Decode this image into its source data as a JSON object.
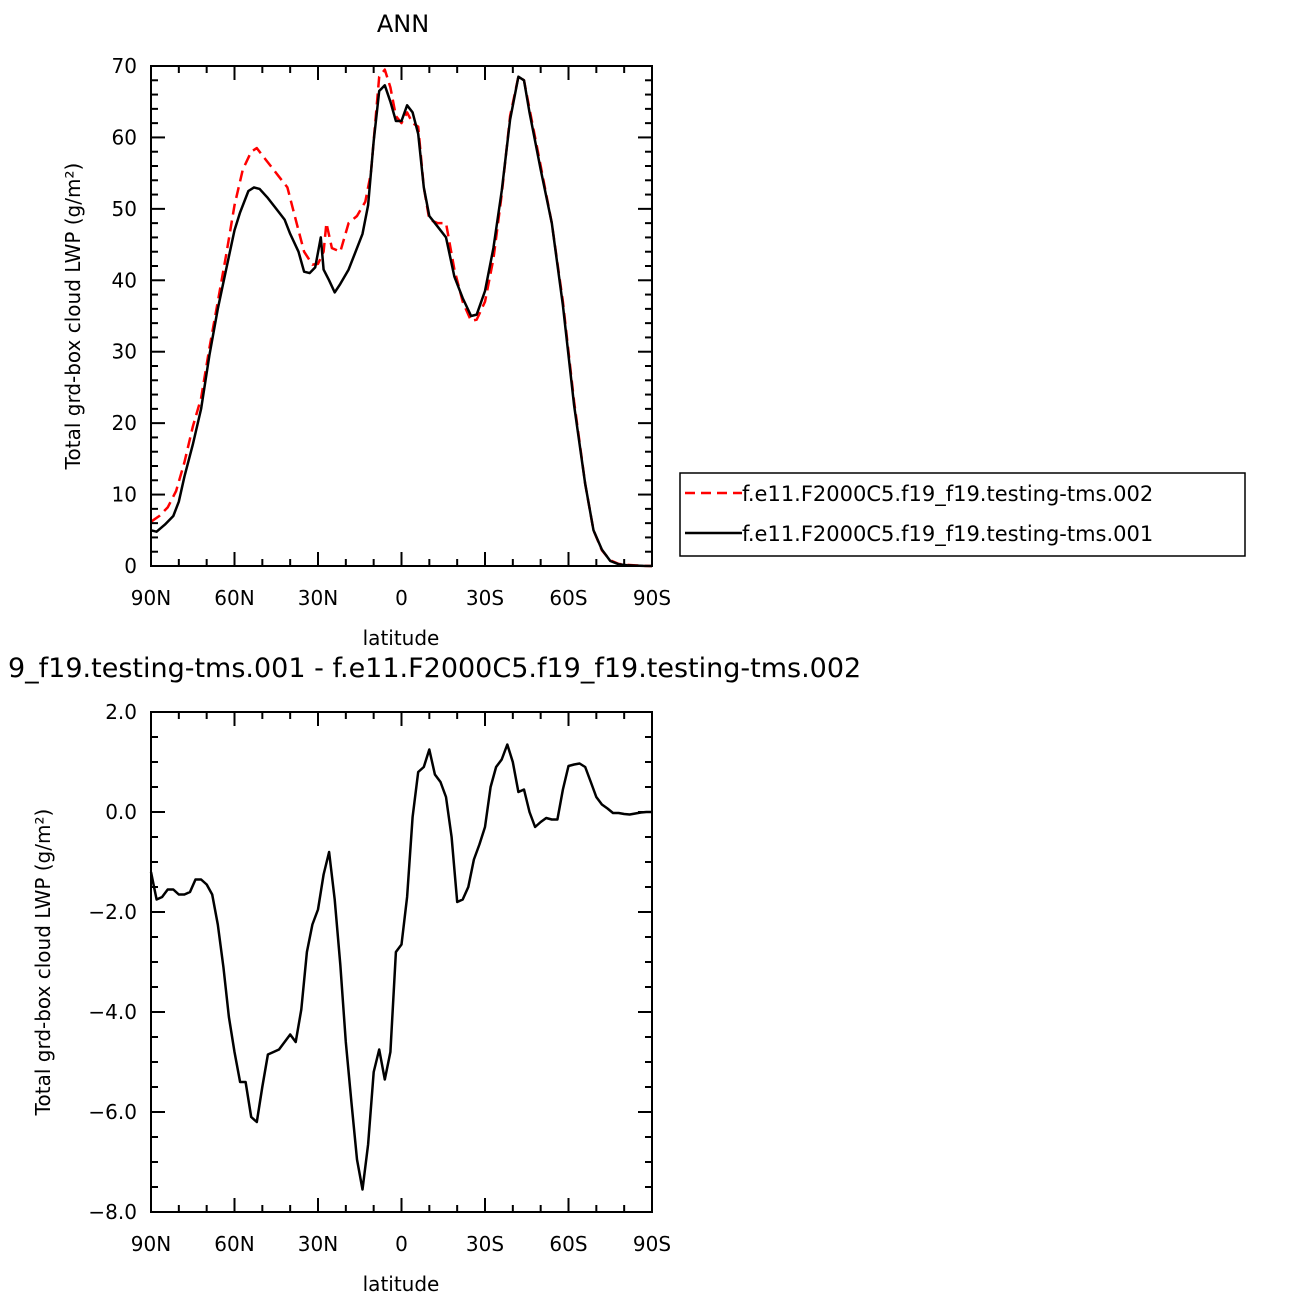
{
  "chart_data": [
    {
      "type": "line",
      "title": "ANN",
      "xlabel": "latitude",
      "ylabel": "Total grd-box cloud LWP (g/m²)",
      "xlim": [
        90,
        -90
      ],
      "ylim": [
        0,
        70
      ],
      "x_ticks": [
        {
          "value": 90,
          "label": "90N"
        },
        {
          "value": 60,
          "label": "60N"
        },
        {
          "value": 30,
          "label": "30N"
        },
        {
          "value": 0,
          "label": "0"
        },
        {
          "value": -30,
          "label": "30S"
        },
        {
          "value": -60,
          "label": "60S"
        },
        {
          "value": -90,
          "label": "90S"
        }
      ],
      "y_ticks": [
        {
          "value": 0,
          "label": "0"
        },
        {
          "value": 10,
          "label": "10"
        },
        {
          "value": 20,
          "label": "20"
        },
        {
          "value": 30,
          "label": "30"
        },
        {
          "value": 40,
          "label": "40"
        },
        {
          "value": 50,
          "label": "50"
        },
        {
          "value": 60,
          "label": "60"
        },
        {
          "value": 70,
          "label": "70"
        }
      ],
      "legend_position": "right",
      "series": [
        {
          "name": "f.e11.F2000C5.f19_f19.testing-tms.002",
          "color": "#ff0000",
          "dash": true,
          "x": [
            90,
            87,
            84,
            81,
            78,
            75,
            72,
            69,
            66,
            63,
            60,
            57,
            54,
            52,
            50,
            47,
            44,
            41,
            38,
            35,
            32,
            30,
            28,
            27,
            25,
            22,
            19,
            16,
            13,
            11,
            8,
            6,
            4,
            2,
            0,
            -2,
            -4,
            -6,
            -8,
            -10,
            -13,
            -16,
            -19,
            -22,
            -25,
            -27,
            -30,
            -33,
            -36,
            -39,
            -42,
            -44,
            -46,
            -50,
            -54,
            -58,
            -62,
            -66,
            -69,
            -72,
            -75,
            -78,
            -81,
            -84,
            -87,
            -90
          ],
          "y": [
            6.2,
            7.0,
            8.2,
            10.5,
            14.5,
            19.5,
            23.5,
            30.5,
            37.0,
            43.5,
            50.5,
            55.5,
            58.0,
            58.5,
            57.5,
            56.0,
            54.5,
            53.0,
            48.5,
            44.0,
            42.2,
            42.3,
            44.0,
            48.0,
            44.5,
            44.0,
            48.0,
            49.0,
            51.0,
            55.0,
            68.5,
            69.5,
            67.0,
            63.0,
            62.0,
            63.5,
            62.0,
            61.5,
            53.0,
            48.5,
            48.0,
            48.0,
            41.5,
            37.0,
            34.3,
            34.5,
            37.0,
            43.0,
            52.0,
            63.0,
            68.5,
            68.0,
            64.0,
            56.0,
            48.0,
            37.0,
            23.0,
            11.5,
            5.0,
            2.2,
            0.8,
            0.3,
            0.15,
            0.08,
            0.03,
            0.0
          ]
        },
        {
          "name": "f.e11.F2000C5.f19_f19.testing-tms.001",
          "color": "#000000",
          "dash": false,
          "x": [
            90,
            88,
            85,
            82,
            80,
            78,
            75,
            72,
            69,
            66,
            63,
            60,
            58,
            55,
            53,
            51,
            48,
            45,
            42,
            40,
            37,
            35,
            33,
            31,
            29,
            28,
            26,
            24,
            22,
            19,
            16,
            14,
            12,
            10,
            8,
            6,
            4,
            2,
            0,
            -2,
            -4,
            -6,
            -8,
            -10,
            -13,
            -16,
            -19,
            -22,
            -25,
            -27,
            -30,
            -33,
            -36,
            -39,
            -42,
            -44,
            -46,
            -50,
            -54,
            -58,
            -62,
            -66,
            -69,
            -72,
            -75,
            -78,
            -81,
            -84,
            -87,
            -90
          ],
          "y": [
            5.0,
            4.8,
            5.8,
            7.0,
            9.0,
            12.5,
            17.0,
            22.0,
            29.5,
            36.0,
            41.5,
            47.0,
            49.5,
            52.5,
            53.0,
            52.8,
            51.5,
            50.0,
            48.5,
            46.5,
            44.0,
            41.2,
            41.0,
            41.8,
            46.0,
            41.5,
            40.0,
            38.3,
            39.5,
            41.5,
            44.5,
            46.5,
            50.5,
            59.5,
            66.5,
            67.3,
            65.0,
            62.3,
            62.3,
            64.5,
            63.5,
            60.5,
            53.0,
            49.0,
            47.5,
            46.0,
            40.5,
            37.5,
            35.0,
            35.2,
            38.5,
            44.5,
            52.5,
            62.5,
            68.5,
            68.0,
            63.5,
            55.5,
            48.0,
            36.5,
            22.5,
            11.5,
            5.0,
            2.3,
            0.7,
            0.25,
            0.1,
            0.05,
            0.02,
            0.0
          ]
        }
      ]
    },
    {
      "type": "line",
      "title": "9_f19.testing-tms.001 - f.e11.F2000C5.f19_f19.testing-tms.002",
      "xlabel": "latitude",
      "ylabel": "Total grd-box cloud LWP (g/m²)",
      "xlim": [
        90,
        -90
      ],
      "ylim": [
        -8,
        2
      ],
      "x_ticks": [
        {
          "value": 90,
          "label": "90N"
        },
        {
          "value": 60,
          "label": "60N"
        },
        {
          "value": 30,
          "label": "30N"
        },
        {
          "value": 0,
          "label": "0"
        },
        {
          "value": -30,
          "label": "30S"
        },
        {
          "value": -60,
          "label": "60S"
        },
        {
          "value": -90,
          "label": "90S"
        }
      ],
      "y_ticks": [
        {
          "value": 2,
          "label": "2.0"
        },
        {
          "value": 0,
          "label": "0.0"
        },
        {
          "value": -2,
          "label": "−2.0"
        },
        {
          "value": -4,
          "label": "−4.0"
        },
        {
          "value": -6,
          "label": "−6.0"
        },
        {
          "value": -8,
          "label": "−8.0"
        }
      ],
      "series": [
        {
          "color": "#000000",
          "x": [
            90,
            88,
            86,
            84,
            82,
            80,
            78,
            76,
            74,
            72,
            70,
            68,
            66,
            64,
            62,
            60,
            58,
            56,
            54,
            52,
            50,
            48,
            46,
            44,
            42,
            40,
            38,
            36,
            34,
            32,
            30,
            28,
            26,
            24,
            22,
            20,
            18,
            16,
            14,
            12,
            10,
            8,
            6,
            4,
            2,
            0,
            -2,
            -4,
            -6,
            -8,
            -10,
            -12,
            -14,
            -16,
            -18,
            -20,
            -22,
            -24,
            -26,
            -28,
            -30,
            -32,
            -34,
            -36,
            -38,
            -40,
            -42,
            -44,
            -46,
            -48,
            -50,
            -52,
            -54,
            -56,
            -58,
            -60,
            -62,
            -64,
            -66,
            -68,
            -70,
            -72,
            -74,
            -76,
            -78,
            -80,
            -82,
            -84,
            -86,
            -88,
            -90
          ],
          "y": [
            -1.2,
            -1.75,
            -1.7,
            -1.55,
            -1.55,
            -1.65,
            -1.65,
            -1.6,
            -1.35,
            -1.35,
            -1.45,
            -1.65,
            -2.25,
            -3.1,
            -4.1,
            -4.8,
            -5.4,
            -5.4,
            -6.1,
            -6.2,
            -5.5,
            -4.85,
            -4.8,
            -4.75,
            -4.6,
            -4.45,
            -4.6,
            -3.95,
            -2.8,
            -2.25,
            -1.95,
            -1.25,
            -0.8,
            -1.75,
            -3.05,
            -4.6,
            -5.8,
            -6.95,
            -7.55,
            -6.65,
            -5.2,
            -4.75,
            -5.35,
            -4.8,
            -2.8,
            -2.65,
            -1.7,
            -0.1,
            0.8,
            0.9,
            1.25,
            0.75,
            0.6,
            0.3,
            -0.5,
            -1.8,
            -1.75,
            -1.5,
            -0.95,
            -0.65,
            -0.3,
            0.5,
            0.9,
            1.05,
            1.35,
            1.0,
            0.4,
            0.45,
            0.0,
            -0.3,
            -0.2,
            -0.12,
            -0.15,
            -0.15,
            0.45,
            0.92,
            0.95,
            0.97,
            0.9,
            0.6,
            0.3,
            0.15,
            0.07,
            -0.02,
            -0.02,
            -0.04,
            -0.05,
            -0.03,
            -0.01,
            0.0,
            0.0
          ]
        }
      ]
    }
  ]
}
